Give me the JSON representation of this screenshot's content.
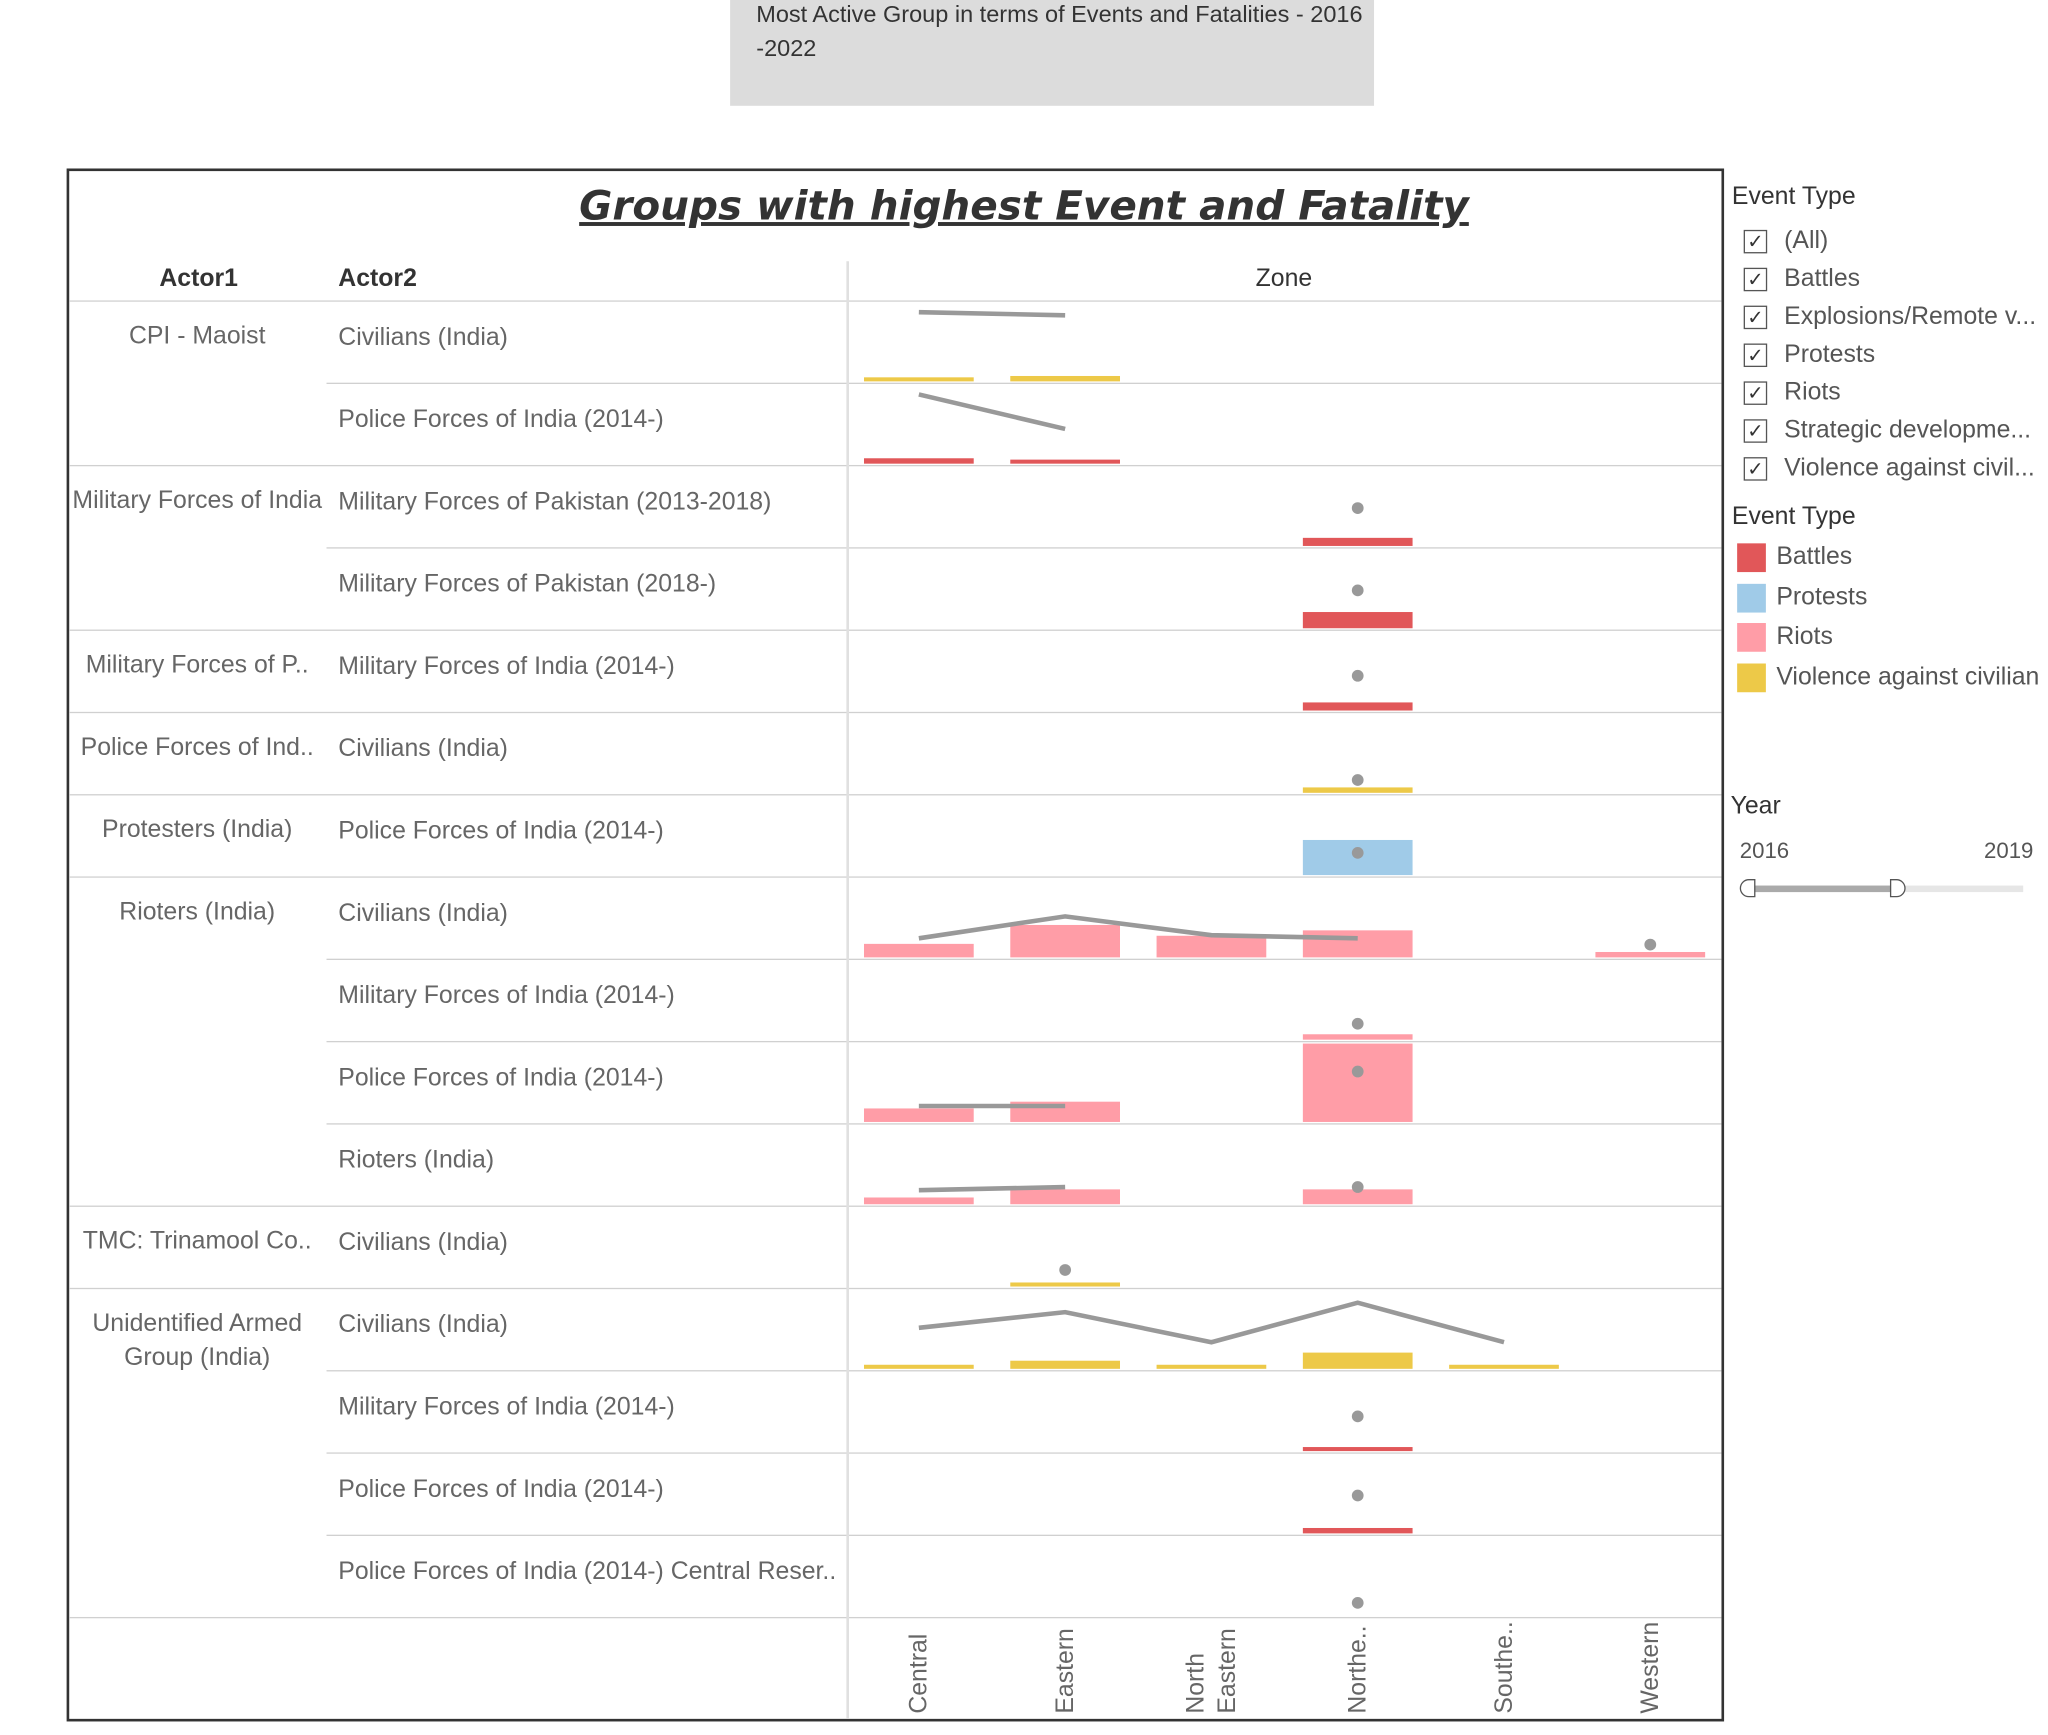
{
  "banner": {
    "text": "Most Active Group in terms of Events and Fatalities - 2016 -2022"
  },
  "worksheet": {
    "title": "Groups with highest Event and Fatality",
    "col_actor1": "Actor1",
    "col_actor2": "Actor2",
    "col_zone": "Zone"
  },
  "rows": [
    {
      "actor1": "CPI - Maoist",
      "actor2": "Civilians (India)"
    },
    {
      "actor1": "",
      "actor2": "Police Forces of India (2014-)"
    },
    {
      "actor1": "Military Forces of India",
      "actor2": "Military Forces of Pakistan (2013-2018)"
    },
    {
      "actor1": "",
      "actor2": "Military Forces of Pakistan (2018-)"
    },
    {
      "actor1": "Military Forces of P..",
      "actor2": "Military Forces of India (2014-)"
    },
    {
      "actor1": "Police Forces of Ind..",
      "actor2": "Civilians (India)"
    },
    {
      "actor1": "Protesters (India)",
      "actor2": "Police Forces of India (2014-)"
    },
    {
      "actor1": "Rioters (India)",
      "actor2": "Civilians (India)"
    },
    {
      "actor1": "",
      "actor2": "Military Forces of India (2014-)"
    },
    {
      "actor1": "",
      "actor2": "Police Forces of India (2014-)"
    },
    {
      "actor1": "",
      "actor2": "Rioters (India)"
    },
    {
      "actor1": "TMC: Trinamool Co..",
      "actor2": "Civilians (India)"
    },
    {
      "actor1": "Unidentified Armed Group (India)",
      "actor2": "Civilians (India)"
    },
    {
      "actor1": "",
      "actor2": "Military Forces of India (2014-)"
    },
    {
      "actor1": "",
      "actor2": "Police Forces of India (2014-)"
    },
    {
      "actor1": "",
      "actor2": "Police Forces of India (2014-) Central Reser.."
    }
  ],
  "filter": {
    "title": "Event Type",
    "items": [
      "(All)",
      "Battles",
      "Explosions/Remote v...",
      "Protests",
      "Riots",
      "Strategic developme...",
      "Violence against civil..."
    ],
    "checked": [
      true,
      true,
      true,
      true,
      true,
      true,
      true
    ],
    "check_glyph": "✓"
  },
  "legend": {
    "title": "Event Type",
    "items": [
      {
        "label": "Battles",
        "color": "#e15759"
      },
      {
        "label": "Protests",
        "color": "#a0cbe8"
      },
      {
        "label": "Riots",
        "color": "#ff9da7"
      },
      {
        "label": "Violence against civilian",
        "color": "#edc948"
      }
    ]
  },
  "year_slider": {
    "title": "Year",
    "min_label": "2016",
    "max_label": "2019",
    "range_fraction": 0.55
  },
  "chart_data": {
    "type": "bar",
    "x_label": "Zone",
    "categories": [
      "Central",
      "Eastern",
      "North Eastern",
      "Northe..",
      "Southe..",
      "Western"
    ],
    "line_color": "#999999",
    "rows": [
      {
        "bars": [
          {
            "zone": 0,
            "type": "Violence against civilian",
            "value": 3
          },
          {
            "zone": 1,
            "type": "Violence against civilian",
            "value": 4
          }
        ],
        "line": [
          [
            0,
            1.0
          ],
          [
            1,
            0.95
          ]
        ],
        "dots": []
      },
      {
        "bars": [
          {
            "zone": 0,
            "type": "Battles",
            "value": 4
          },
          {
            "zone": 1,
            "type": "Battles",
            "value": 3
          }
        ],
        "line": [
          [
            0,
            1.0
          ],
          [
            1,
            0.45
          ]
        ],
        "dots": []
      },
      {
        "bars": [
          {
            "zone": 3,
            "type": "Battles",
            "value": 6
          }
        ],
        "line": [],
        "dots": [
          [
            3,
            0.5
          ]
        ]
      },
      {
        "bars": [
          {
            "zone": 3,
            "type": "Battles",
            "value": 12
          }
        ],
        "line": [],
        "dots": [
          [
            3,
            0.5
          ]
        ]
      },
      {
        "bars": [
          {
            "zone": 3,
            "type": "Battles",
            "value": 6
          }
        ],
        "line": [],
        "dots": [
          [
            3,
            0.45
          ]
        ]
      },
      {
        "bars": [
          {
            "zone": 3,
            "type": "Violence against civilian",
            "value": 4
          }
        ],
        "line": [],
        "dots": [
          [
            3,
            0.1
          ]
        ]
      },
      {
        "bars": [
          {
            "zone": 3,
            "type": "Protests",
            "value": 26
          }
        ],
        "line": [],
        "dots": [
          [
            3,
            0.25
          ]
        ]
      },
      {
        "bars": [
          {
            "zone": 0,
            "type": "Riots",
            "value": 10
          },
          {
            "zone": 1,
            "type": "Riots",
            "value": 24
          },
          {
            "zone": 2,
            "type": "Riots",
            "value": 16
          },
          {
            "zone": 3,
            "type": "Riots",
            "value": 20
          },
          {
            "zone": 5,
            "type": "Riots",
            "value": 4
          }
        ],
        "line": [
          [
            0,
            0.2
          ],
          [
            1,
            0.55
          ],
          [
            2,
            0.25
          ],
          [
            3,
            0.2
          ]
        ],
        "dots": [
          [
            5,
            0.1
          ]
        ]
      },
      {
        "bars": [
          {
            "zone": 3,
            "type": "Riots",
            "value": 4
          }
        ],
        "line": [],
        "dots": [
          [
            3,
            0.15
          ]
        ]
      },
      {
        "bars": [
          {
            "zone": 0,
            "type": "Riots",
            "value": 10
          },
          {
            "zone": 1,
            "type": "Riots",
            "value": 15
          },
          {
            "zone": 3,
            "type": "Riots",
            "value": 58
          }
        ],
        "line": [
          [
            0,
            0.15
          ],
          [
            1,
            0.15
          ]
        ],
        "dots": [
          [
            3,
            0.7
          ]
        ]
      },
      {
        "bars": [
          {
            "zone": 0,
            "type": "Riots",
            "value": 5
          },
          {
            "zone": 1,
            "type": "Riots",
            "value": 11
          },
          {
            "zone": 3,
            "type": "Riots",
            "value": 11
          }
        ],
        "line": [
          [
            0,
            0.12
          ],
          [
            1,
            0.17
          ]
        ],
        "dots": [
          [
            3,
            0.17
          ]
        ]
      },
      {
        "bars": [
          {
            "zone": 1,
            "type": "Violence against civilian",
            "value": 3
          }
        ],
        "line": [],
        "dots": [
          [
            1,
            0.16
          ]
        ]
      },
      {
        "bars": [
          {
            "zone": 0,
            "type": "Violence against civilian",
            "value": 3
          },
          {
            "zone": 1,
            "type": "Violence against civilian",
            "value": 6
          },
          {
            "zone": 2,
            "type": "Violence against civilian",
            "value": 3
          },
          {
            "zone": 3,
            "type": "Violence against civilian",
            "value": 12
          },
          {
            "zone": 4,
            "type": "Violence against civilian",
            "value": 3
          }
        ],
        "line": [
          [
            0,
            0.55
          ],
          [
            1,
            0.8
          ],
          [
            2,
            0.32
          ],
          [
            3,
            0.95
          ],
          [
            4,
            0.32
          ]
        ],
        "dots": []
      },
      {
        "bars": [
          {
            "zone": 3,
            "type": "Battles",
            "value": 3
          }
        ],
        "line": [],
        "dots": [
          [
            3,
            0.45
          ]
        ]
      },
      {
        "bars": [
          {
            "zone": 3,
            "type": "Battles",
            "value": 4
          }
        ],
        "line": [],
        "dots": [
          [
            3,
            0.5
          ]
        ]
      },
      {
        "bars": [],
        "line": [],
        "dots": [
          [
            3,
            0.1
          ]
        ]
      }
    ]
  }
}
